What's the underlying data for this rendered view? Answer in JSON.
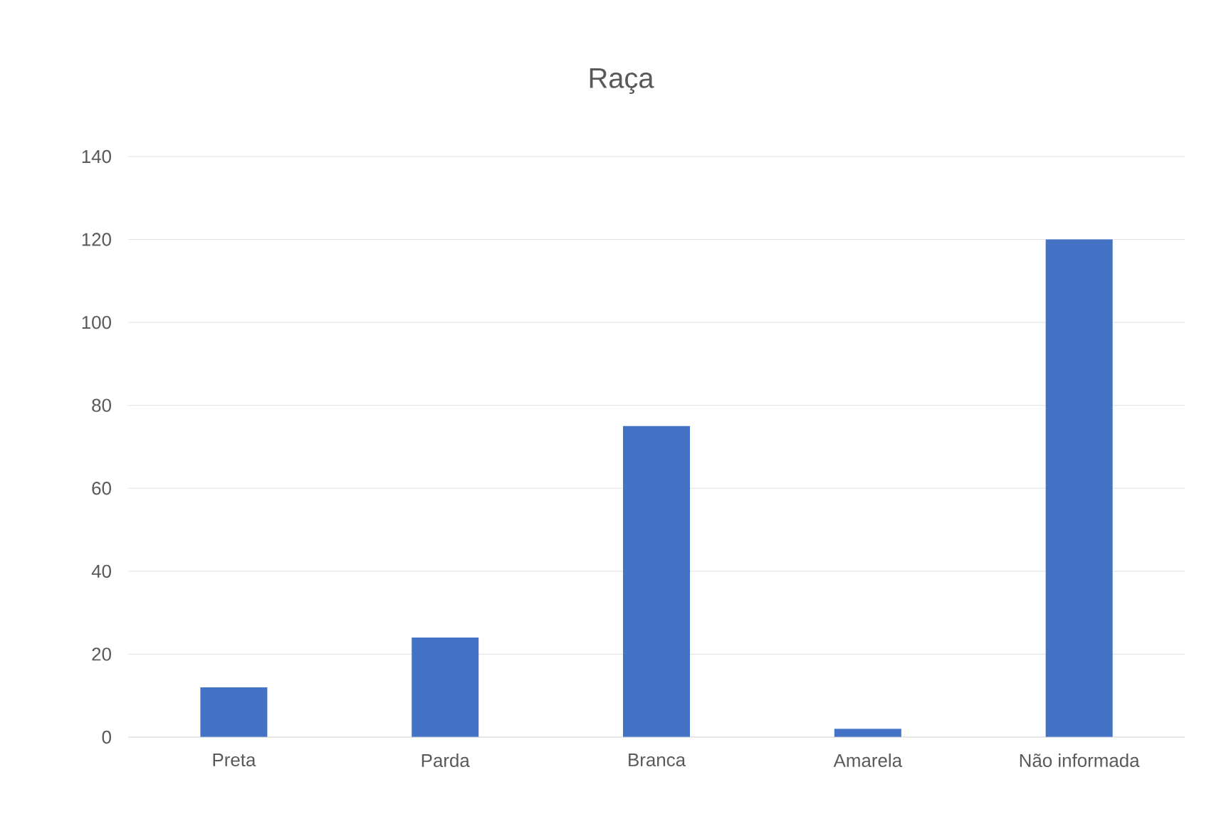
{
  "chart_data": {
    "type": "bar",
    "title": "Raça",
    "categories": [
      "Preta",
      "Parda",
      "Branca",
      "Amarela",
      "Não informada"
    ],
    "values": [
      12,
      24,
      75,
      2,
      120
    ],
    "color": "#4472c4",
    "ylim": [
      0,
      140
    ],
    "yticks": [
      0,
      20,
      40,
      60,
      80,
      100,
      120,
      140
    ],
    "grid": "y"
  }
}
